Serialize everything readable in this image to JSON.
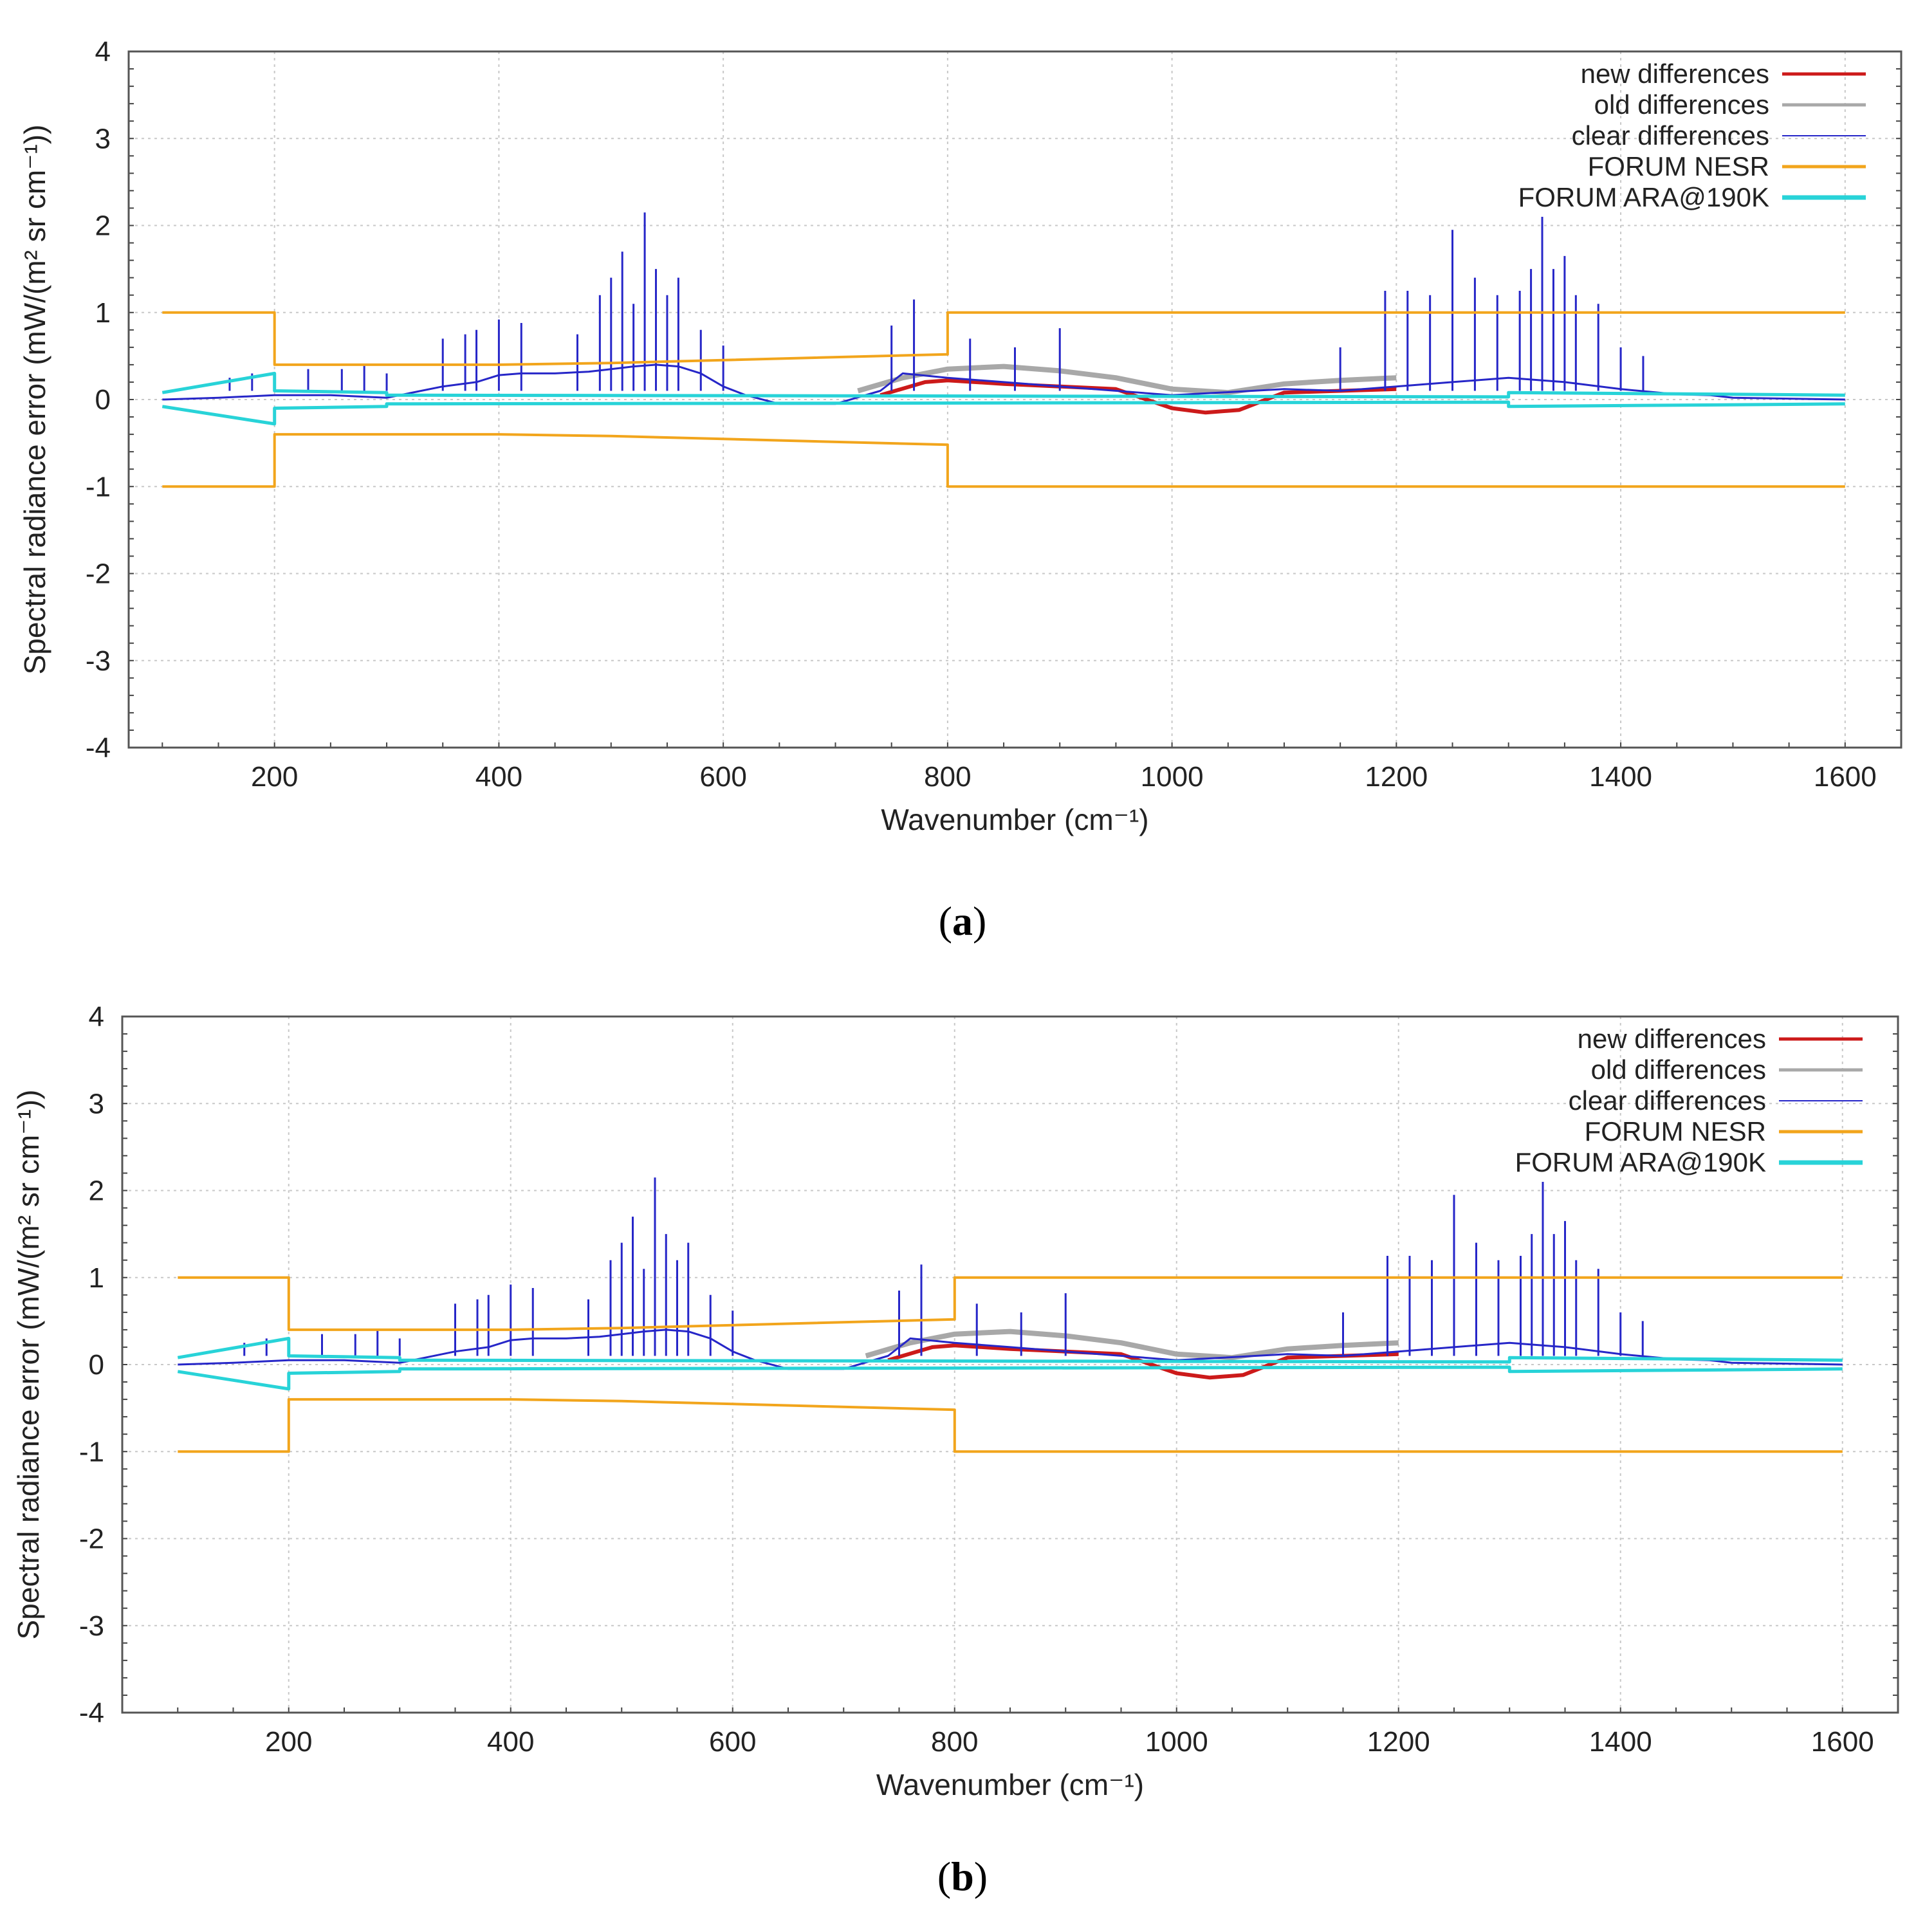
{
  "chart_data": [
    {
      "type": "line",
      "panel": "a",
      "caption": "a",
      "xlabel": "Wavenumber (cm⁻¹)",
      "ylabel": "Spectral radiance error (mW/(m² sr cm⁻¹))",
      "xlim": [
        70,
        1650
      ],
      "ylim": [
        -4,
        4
      ],
      "xticks": [
        200,
        400,
        600,
        800,
        1000,
        1200,
        1400,
        1600
      ],
      "yticks": [
        4,
        3,
        2,
        1,
        0,
        -1,
        -2,
        -3,
        -4
      ],
      "xtick_labels": [
        "200",
        "400",
        "600",
        "800",
        "1000",
        "1200",
        "1400",
        "1600"
      ],
      "ytick_labels": [
        "4",
        "3",
        "2",
        "1",
        "0",
        "-1",
        "-2",
        "-3",
        "-4"
      ],
      "grid": true,
      "legend_position": "top-right",
      "legend": [
        {
          "label": "new differences",
          "color": "#cc1a1a"
        },
        {
          "label": "old differences",
          "color": "#a8a8a8"
        },
        {
          "label": "clear differences",
          "color": "#2626c8"
        },
        {
          "label": "FORUM NESR",
          "color": "#f2a51c"
        },
        {
          "label": "FORUM ARA@190K",
          "color": "#28d3d8"
        }
      ],
      "series": [
        {
          "name": "FORUM NESR",
          "color": "#f2a51c",
          "x": [
            100,
            200,
            200,
            400,
            500,
            800,
            800,
            1600
          ],
          "y": [
            1.0,
            1.0,
            0.4,
            0.4,
            0.42,
            0.52,
            1.0,
            1.0
          ]
        },
        {
          "name": "FORUM NESR (negative)",
          "color": "#f2a51c",
          "x": [
            100,
            200,
            200,
            400,
            500,
            800,
            800,
            1600
          ],
          "y": [
            -1.0,
            -1.0,
            -0.4,
            -0.4,
            -0.42,
            -0.52,
            -1.0,
            -1.0
          ]
        },
        {
          "name": "FORUM ARA@190K",
          "color": "#28d3d8",
          "x": [
            100,
            200,
            200,
            300,
            300,
            1300,
            1300,
            1600
          ],
          "y": [
            0.08,
            0.3,
            0.1,
            0.08,
            0.05,
            0.03,
            0.08,
            0.05
          ]
        },
        {
          "name": "FORUM ARA@190K (negative)",
          "color": "#28d3d8",
          "x": [
            100,
            200,
            200,
            300,
            300,
            1300,
            1300,
            1600
          ],
          "y": [
            -0.08,
            -0.28,
            -0.1,
            -0.08,
            -0.05,
            -0.03,
            -0.08,
            -0.05
          ]
        },
        {
          "name": "old differences",
          "color": "#a8a8a8",
          "x": [
            720,
            760,
            800,
            850,
            900,
            950,
            1000,
            1050,
            1100,
            1150,
            1200
          ],
          "y": [
            0.1,
            0.25,
            0.35,
            0.38,
            0.33,
            0.25,
            0.12,
            0.08,
            0.18,
            0.22,
            0.25
          ]
        },
        {
          "name": "new differences",
          "color": "#cc1a1a",
          "x": [
            740,
            780,
            800,
            850,
            900,
            950,
            1000,
            1030,
            1060,
            1100,
            1150,
            1200
          ],
          "y": [
            0.05,
            0.2,
            0.22,
            0.18,
            0.15,
            0.12,
            -0.1,
            -0.15,
            -0.12,
            0.08,
            0.1,
            0.12
          ]
        },
        {
          "name": "clear differences",
          "color": "#2626c8",
          "x": [
            100,
            150,
            200,
            250,
            300,
            350,
            380,
            400,
            420,
            450,
            480,
            500,
            520,
            540,
            560,
            580,
            600,
            620,
            650,
            700,
            740,
            760,
            800,
            850,
            900,
            1000,
            1100,
            1150,
            1200,
            1250,
            1300,
            1330,
            1350,
            1400,
            1450,
            1480,
            1500,
            1600
          ],
          "y": [
            0.0,
            0.02,
            0.05,
            0.05,
            0.02,
            0.15,
            0.2,
            0.28,
            0.3,
            0.3,
            0.32,
            0.35,
            0.38,
            0.4,
            0.38,
            0.3,
            0.15,
            0.05,
            -0.05,
            -0.05,
            0.1,
            0.3,
            0.25,
            0.2,
            0.15,
            0.05,
            0.12,
            0.1,
            0.15,
            0.2,
            0.25,
            0.22,
            0.2,
            0.12,
            0.06,
            0.05,
            0.02,
            0.0
          ]
        },
        {
          "name": "clear differences (spikes)",
          "color": "#2626c8",
          "x": [
            160,
            180,
            230,
            260,
            280,
            300,
            350,
            370,
            380,
            400,
            420,
            470,
            490,
            500,
            510,
            520,
            530,
            540,
            550,
            560,
            580,
            600,
            750,
            770,
            820,
            860,
            900,
            1150,
            1190,
            1210,
            1230,
            1250,
            1270,
            1290,
            1310,
            1320,
            1330,
            1340,
            1350,
            1360,
            1380,
            1400,
            1420
          ],
          "y": [
            0.25,
            0.3,
            0.35,
            0.35,
            0.4,
            0.3,
            0.7,
            0.75,
            0.8,
            0.92,
            0.88,
            0.75,
            1.2,
            1.4,
            1.7,
            1.1,
            2.15,
            1.5,
            1.2,
            1.4,
            0.8,
            0.62,
            0.85,
            1.15,
            0.7,
            0.6,
            0.82,
            0.6,
            1.25,
            1.25,
            1.2,
            1.95,
            1.4,
            1.2,
            1.25,
            1.5,
            2.1,
            1.5,
            1.65,
            1.2,
            1.1,
            0.6,
            0.5
          ]
        }
      ]
    },
    {
      "type": "line",
      "panel": "b",
      "caption": "b",
      "xlabel": "Wavenumber (cm⁻¹)",
      "ylabel": "Spectral radiance error (mW/(m² sr cm⁻¹))",
      "xlim": [
        50,
        1650
      ],
      "ylim": [
        -4,
        4
      ],
      "xticks": [
        200,
        400,
        600,
        800,
        1000,
        1200,
        1400,
        1600
      ],
      "yticks": [
        4,
        3,
        2,
        1,
        0,
        -1,
        -2,
        -3,
        -4
      ],
      "xtick_labels": [
        "200",
        "400",
        "600",
        "800",
        "1000",
        "1200",
        "1400",
        "1600"
      ],
      "ytick_labels": [
        "4",
        "3",
        "2",
        "1",
        "0",
        "-1",
        "-2",
        "-3",
        "-4"
      ],
      "grid": true,
      "legend_position": "top-right",
      "legend": [
        {
          "label": "new differences",
          "color": "#cc1a1a"
        },
        {
          "label": "old differences",
          "color": "#a8a8a8"
        },
        {
          "label": "clear differences",
          "color": "#2626c8"
        },
        {
          "label": "FORUM NESR",
          "color": "#f2a51c"
        },
        {
          "label": "FORUM ARA@190K",
          "color": "#28d3d8"
        }
      ],
      "series": [
        {
          "name": "FORUM NESR",
          "color": "#f2a51c",
          "x": [
            100,
            200,
            200,
            400,
            500,
            800,
            800,
            1600
          ],
          "y": [
            1.0,
            1.0,
            0.4,
            0.4,
            0.42,
            0.52,
            1.0,
            1.0
          ]
        },
        {
          "name": "FORUM NESR (negative)",
          "color": "#f2a51c",
          "x": [
            100,
            200,
            200,
            400,
            500,
            800,
            800,
            1600
          ],
          "y": [
            -1.0,
            -1.0,
            -0.4,
            -0.4,
            -0.42,
            -0.52,
            -1.0,
            -1.0
          ]
        },
        {
          "name": "FORUM ARA@190K",
          "color": "#28d3d8",
          "x": [
            100,
            200,
            200,
            300,
            300,
            1300,
            1300,
            1600
          ],
          "y": [
            0.08,
            0.3,
            0.1,
            0.08,
            0.05,
            0.03,
            0.08,
            0.05
          ]
        },
        {
          "name": "FORUM ARA@190K (negative)",
          "color": "#28d3d8",
          "x": [
            100,
            200,
            200,
            300,
            300,
            1300,
            1300,
            1600
          ],
          "y": [
            -0.08,
            -0.28,
            -0.1,
            -0.08,
            -0.05,
            -0.03,
            -0.08,
            -0.05
          ]
        },
        {
          "name": "old differences",
          "color": "#a8a8a8",
          "x": [
            720,
            760,
            800,
            850,
            900,
            950,
            1000,
            1050,
            1100,
            1150,
            1200
          ],
          "y": [
            0.1,
            0.25,
            0.35,
            0.38,
            0.33,
            0.25,
            0.12,
            0.08,
            0.18,
            0.22,
            0.25
          ]
        },
        {
          "name": "new differences",
          "color": "#cc1a1a",
          "x": [
            740,
            780,
            800,
            850,
            900,
            950,
            1000,
            1030,
            1060,
            1100,
            1150,
            1200
          ],
          "y": [
            0.05,
            0.2,
            0.22,
            0.18,
            0.15,
            0.12,
            -0.1,
            -0.15,
            -0.12,
            0.08,
            0.1,
            0.12
          ]
        },
        {
          "name": "clear differences",
          "color": "#2626c8",
          "x": [
            100,
            150,
            200,
            250,
            300,
            350,
            380,
            400,
            420,
            450,
            480,
            500,
            520,
            540,
            560,
            580,
            600,
            620,
            650,
            700,
            740,
            760,
            800,
            850,
            900,
            1000,
            1100,
            1150,
            1200,
            1250,
            1300,
            1330,
            1350,
            1400,
            1450,
            1480,
            1500,
            1600
          ],
          "y": [
            0.0,
            0.02,
            0.05,
            0.05,
            0.02,
            0.15,
            0.2,
            0.28,
            0.3,
            0.3,
            0.32,
            0.35,
            0.38,
            0.4,
            0.38,
            0.3,
            0.15,
            0.05,
            -0.05,
            -0.05,
            0.1,
            0.3,
            0.25,
            0.2,
            0.15,
            0.05,
            0.12,
            0.1,
            0.15,
            0.2,
            0.25,
            0.22,
            0.2,
            0.12,
            0.06,
            0.05,
            0.02,
            0.0
          ]
        },
        {
          "name": "clear differences (spikes)",
          "color": "#2626c8",
          "x": [
            160,
            180,
            230,
            260,
            280,
            300,
            350,
            370,
            380,
            400,
            420,
            470,
            490,
            500,
            510,
            520,
            530,
            540,
            550,
            560,
            580,
            600,
            750,
            770,
            820,
            860,
            900,
            1150,
            1190,
            1210,
            1230,
            1250,
            1270,
            1290,
            1310,
            1320,
            1330,
            1340,
            1350,
            1360,
            1380,
            1400,
            1420
          ],
          "y": [
            0.25,
            0.3,
            0.35,
            0.35,
            0.4,
            0.3,
            0.7,
            0.75,
            0.8,
            0.92,
            0.88,
            0.75,
            1.2,
            1.4,
            1.7,
            1.1,
            2.15,
            1.5,
            1.2,
            1.4,
            0.8,
            0.62,
            0.85,
            1.15,
            0.7,
            0.6,
            0.82,
            0.6,
            1.25,
            1.25,
            1.2,
            1.95,
            1.4,
            1.2,
            1.25,
            1.5,
            2.1,
            1.5,
            1.65,
            1.2,
            1.1,
            0.6,
            0.5
          ]
        }
      ]
    }
  ]
}
